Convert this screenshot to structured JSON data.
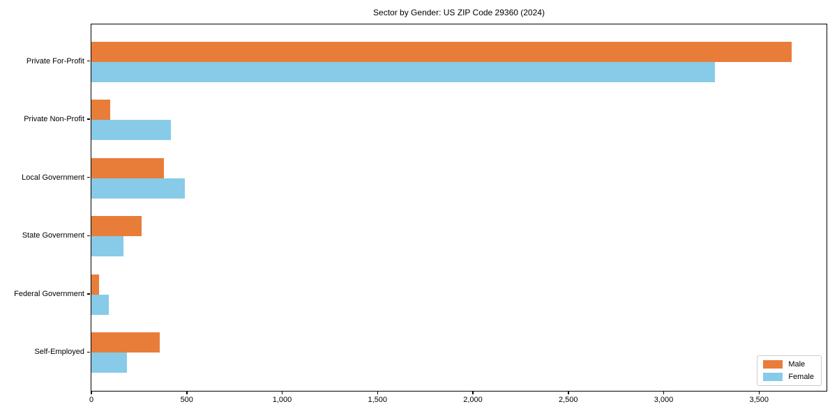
{
  "chart_data": {
    "type": "bar",
    "orientation": "horizontal",
    "title": "Sector by Gender: US ZIP Code 29360 (2024)",
    "categories": [
      "Private For-Profit",
      "Private Non-Profit",
      "Local Government",
      "State Government",
      "Federal Government",
      "Self-Employed"
    ],
    "series": [
      {
        "name": "Male",
        "color": "#e87d3a",
        "values": [
          3670,
          100,
          380,
          265,
          40,
          360
        ]
      },
      {
        "name": "Female",
        "color": "#87cbe8",
        "values": [
          3270,
          415,
          490,
          170,
          90,
          185
        ]
      }
    ],
    "xlabel": "",
    "ylabel": "",
    "xlim": [
      0,
      3850
    ],
    "xticks": [
      0,
      500,
      1000,
      1500,
      2000,
      2500,
      3000,
      3500
    ],
    "xtick_labels": [
      "0",
      "500",
      "1,000",
      "1,500",
      "2,000",
      "2,500",
      "3,000",
      "3,500"
    ],
    "grid": false,
    "legend_position": "lower right"
  }
}
